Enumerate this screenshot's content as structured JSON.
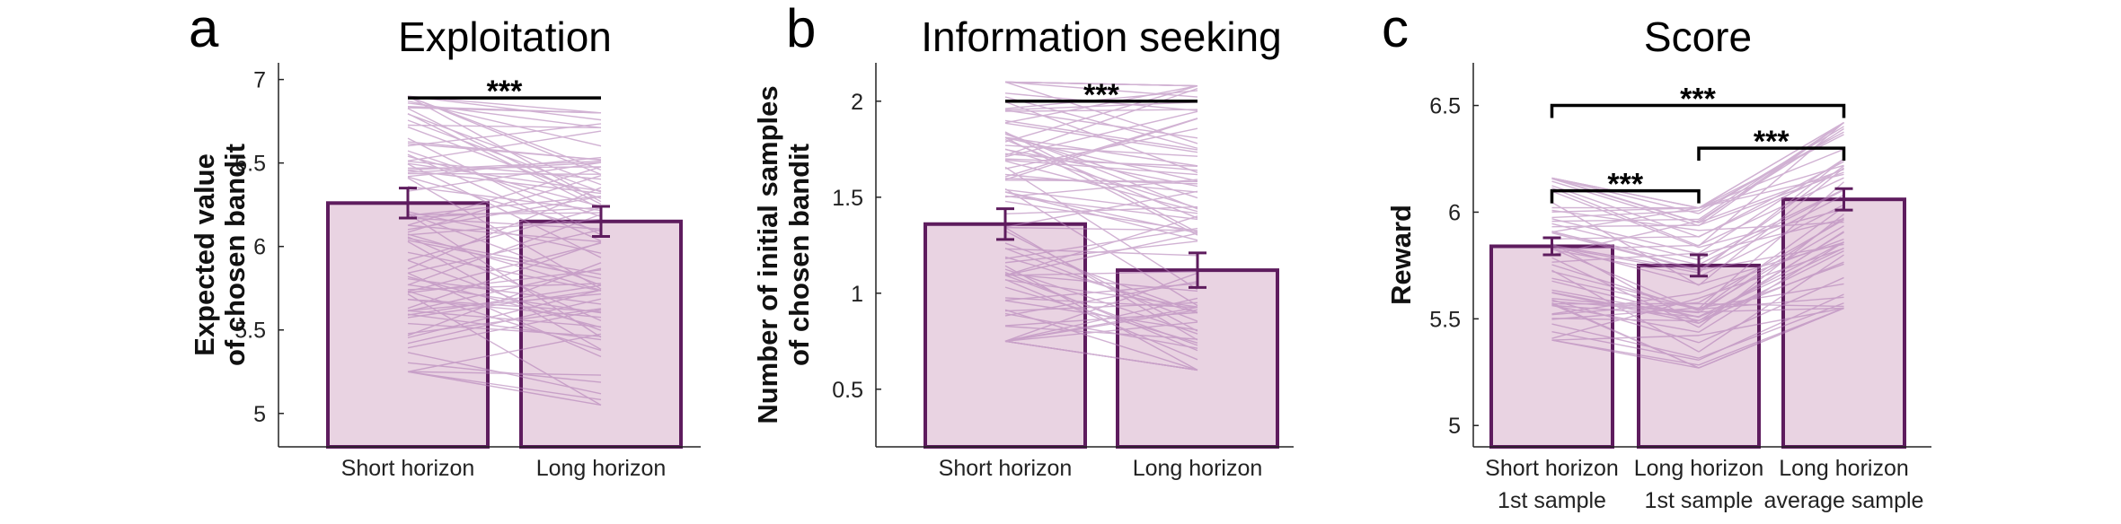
{
  "colors": {
    "bar_fill": "#e9d3e2",
    "bar_edge": "#5e1c5e",
    "subject_line": "#b37fb7",
    "error_bar": "#5e1c5e"
  },
  "chart_data": [
    {
      "panel": "a",
      "type": "bar",
      "title": "Exploitation",
      "ylabel": [
        "Expected value",
        "of chosen bandit"
      ],
      "xlabel": "",
      "ylim": [
        4.8,
        7.1
      ],
      "yticks": [
        5,
        5.5,
        6,
        6.5,
        7
      ],
      "categories": [
        [
          "Short horizon"
        ],
        [
          "Long horizon"
        ]
      ],
      "values": [
        6.26,
        6.15
      ],
      "errors": [
        0.09,
        0.09
      ],
      "subject_lines": {
        "count": 90,
        "first_range": [
          5.25,
          6.9
        ],
        "second_range": [
          5.05,
          6.8
        ]
      },
      "significance": [
        {
          "from": 0,
          "to": 1,
          "y": 6.89,
          "label": "***"
        }
      ],
      "grid": false,
      "legend": "none"
    },
    {
      "panel": "b",
      "type": "bar",
      "title": "Information seeking",
      "ylabel": [
        "Number of initial samples",
        "of chosen bandit"
      ],
      "xlabel": "",
      "ylim": [
        0.2,
        2.2
      ],
      "yticks": [
        0.5,
        1,
        1.5,
        2
      ],
      "categories": [
        [
          "Short horizon"
        ],
        [
          "Long horizon"
        ]
      ],
      "values": [
        1.36,
        1.12
      ],
      "errors": [
        0.08,
        0.09
      ],
      "subject_lines": {
        "count": 90,
        "first_range": [
          0.75,
          2.1
        ],
        "second_range": [
          0.6,
          2.08
        ]
      },
      "significance": [
        {
          "from": 0,
          "to": 1,
          "y": 2.0,
          "label": "***"
        }
      ],
      "grid": false,
      "legend": "none"
    },
    {
      "panel": "c",
      "type": "bar",
      "title": "Score",
      "ylabel": [
        "Reward"
      ],
      "xlabel": "",
      "ylim": [
        4.9,
        6.7
      ],
      "yticks": [
        5,
        5.5,
        6,
        6.5
      ],
      "categories": [
        [
          "Short horizon",
          "1st sample"
        ],
        [
          "Long horizon",
          "1st sample"
        ],
        [
          "Long horizon",
          "average sample"
        ]
      ],
      "values": [
        5.84,
        5.75,
        6.06
      ],
      "errors": [
        0.04,
        0.05,
        0.05
      ],
      "subject_lines": {
        "count": 60,
        "first_range": [
          5.4,
          6.16
        ],
        "second_range": [
          5.27,
          6.02
        ],
        "third_range": [
          5.55,
          6.42
        ]
      },
      "significance": [
        {
          "from": 0,
          "to": 2,
          "y": 6.5,
          "label": "***"
        },
        {
          "from": 1,
          "to": 2,
          "y": 6.3,
          "label": "***"
        },
        {
          "from": 0,
          "to": 1,
          "y": 6.1,
          "label": "***"
        }
      ],
      "grid": false,
      "legend": "none"
    }
  ]
}
